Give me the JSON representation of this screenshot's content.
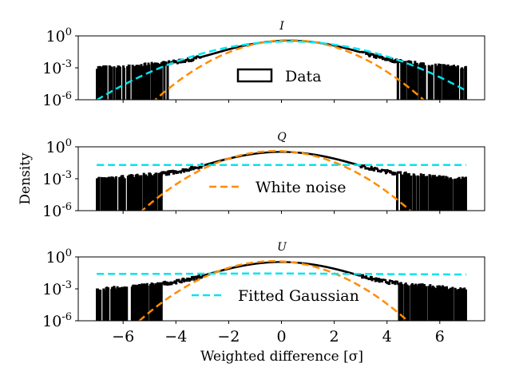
{
  "chart_data": {
    "type": "line",
    "ylabel": "Density",
    "xlabel": "Weighted difference [σ]",
    "xlim": [
      -7.7,
      7.7
    ],
    "ylim": [
      1e-06,
      1
    ],
    "yscale": "log",
    "xticks": [
      -6,
      -4,
      -2,
      0,
      2,
      4,
      6
    ],
    "xtick_labels": [
      "−6",
      "−4",
      "−2",
      "0",
      "2",
      "4",
      "6"
    ],
    "yticks": [
      {
        "base": "10",
        "exp": "0"
      },
      {
        "base": "10",
        "exp": "-3"
      },
      {
        "base": "10",
        "exp": "-6"
      }
    ],
    "colors": {
      "data": "#000000",
      "white_noise": "#ff8c00",
      "fitted": "#00e5ee"
    },
    "panels": [
      {
        "title": "I",
        "legend": {
          "label": "Data",
          "kind": "box",
          "location": "center"
        },
        "data_range": [
          -7,
          7
        ],
        "data_floor": 0.001,
        "data_peak": {
          "mean": 0.3,
          "amplitude": 0.33
        },
        "white_noise": {
          "mean": 0.3,
          "sigma": 1.0
        },
        "fitted_gaussian": {
          "mean": 0.3,
          "sigma": 1.45,
          "amplitude": 0.3
        }
      },
      {
        "title": "Q",
        "legend": {
          "label": "White noise",
          "kind": "orange-dash",
          "location": "center"
        },
        "data_range": [
          -7,
          7
        ],
        "data_floor": 0.0009,
        "data_peak": {
          "mean": 0.0,
          "amplitude": 0.3
        },
        "white_noise": {
          "mean": -0.2,
          "sigma": 1.0
        },
        "fitted_gaussian": {
          "constant": 0.02
        }
      },
      {
        "title": "U",
        "legend": {
          "label": "Fitted Gaussian",
          "kind": "cyan-dash",
          "location": "lower center"
        },
        "data_range": [
          -7,
          7
        ],
        "data_floor": 0.0006,
        "data_peak": {
          "mean": 0.0,
          "amplitude": 0.3
        },
        "white_noise": {
          "mean": -0.3,
          "sigma": 1.0
        },
        "fitted_gaussian": {
          "constant_left": 0.025,
          "constant_right": 0.022
        }
      }
    ]
  }
}
